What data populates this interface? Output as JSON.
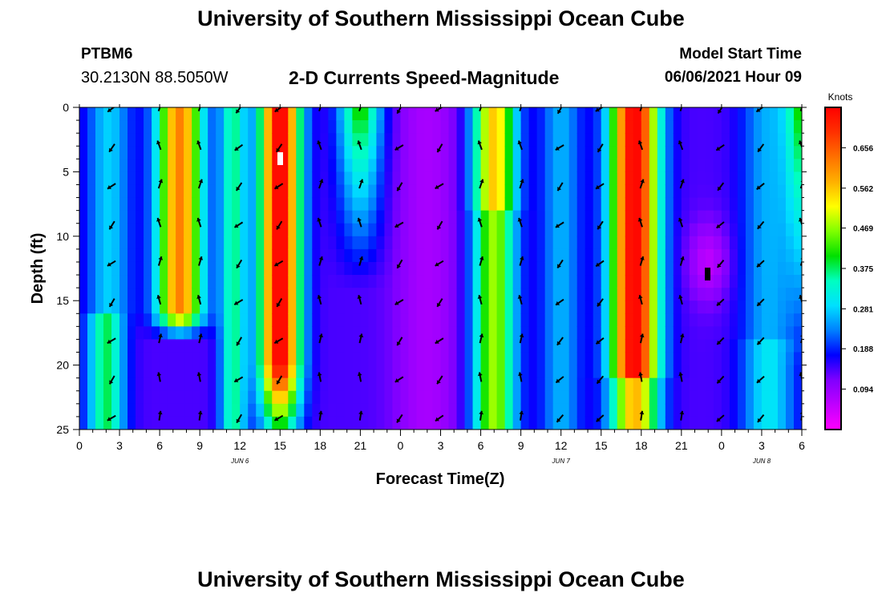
{
  "header": {
    "title": "University of Southern Mississippi Ocean Cube",
    "station": "PTBM6",
    "coordinates": "30.2130N  88.5050W",
    "plot_title": "2-D Currents Speed-Magnitude",
    "model_start_label": "Model Start Time",
    "model_start_value": "06/06/2021 Hour 09"
  },
  "footer": {
    "title": "University of Southern Mississippi Ocean Cube"
  },
  "colors": {
    "palette": [
      "#ff00ff",
      "#c000ff",
      "#8000ff",
      "#0000ff",
      "#0080ff",
      "#00e0ff",
      "#00ffc0",
      "#00e000",
      "#80ff00",
      "#ffff00",
      "#ffb000",
      "#ff7000",
      "#ff3000",
      "#ff0000"
    ]
  },
  "chart_data": {
    "type": "heatmap",
    "xlabel": "Forecast Time(Z)",
    "ylabel": "Depth (ft)",
    "colorbar_label": "Knots",
    "xlim": [
      0,
      54
    ],
    "ylim": [
      0,
      25
    ],
    "x_ticks": [
      0,
      3,
      6,
      9,
      12,
      15,
      18,
      21,
      24,
      27,
      30,
      33,
      36,
      39,
      42,
      45,
      48,
      51,
      54
    ],
    "x_tick_labels": [
      "0",
      "3",
      "6",
      "9",
      "12",
      "15",
      "18",
      "21",
      "0",
      "3",
      "6",
      "9",
      "12",
      "15",
      "18",
      "21",
      "0",
      "3",
      "6"
    ],
    "y_ticks": [
      0,
      5,
      10,
      15,
      20,
      25
    ],
    "y_tick_labels": [
      "0",
      "5",
      "10",
      "15",
      "20",
      "25"
    ],
    "date_labels": [
      {
        "x": 12,
        "text": "JUN 6"
      },
      {
        "x": 36,
        "text": "JUN 7"
      },
      {
        "x": 51,
        "text": "JUN 8"
      }
    ],
    "colorbar_range": [
      0,
      0.75
    ],
    "colorbar_ticks": [
      0.094,
      0.188,
      0.281,
      0.375,
      0.469,
      0.562,
      0.656
    ],
    "colorbar_tick_labels": [
      "0.094",
      "0.188",
      "0.281",
      "0.375",
      "0.469",
      "0.562",
      "0.656"
    ],
    "arrow_hours": [
      2.5,
      6,
      9,
      12,
      15,
      18,
      21,
      24,
      27,
      30,
      33,
      36,
      39,
      42,
      45,
      48,
      51,
      54
    ],
    "arrow_depths": [
      0,
      3,
      6,
      9,
      12,
      15,
      18,
      21,
      24
    ]
  }
}
